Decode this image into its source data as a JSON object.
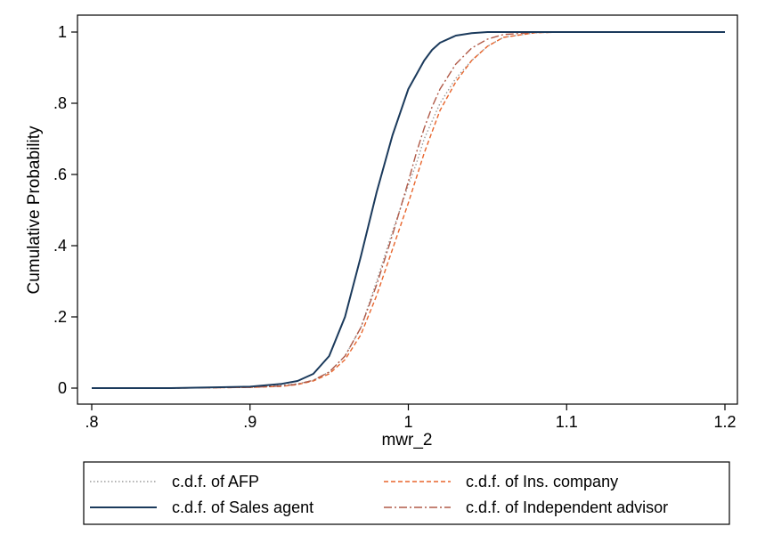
{
  "chart_data": {
    "type": "line",
    "xlabel": "mwr_2",
    "ylabel": "Cumulative Probability",
    "xlim": [
      0.8,
      1.2
    ],
    "ylim": [
      0,
      1
    ],
    "x_ticks": [
      0.8,
      0.9,
      1.0,
      1.1,
      1.2
    ],
    "x_tick_labels": [
      ".8",
      ".9",
      "1",
      "1.1",
      "1.2"
    ],
    "y_ticks": [
      0,
      0.2,
      0.4,
      0.6,
      0.8,
      1.0
    ],
    "y_tick_labels": [
      "0",
      ".2",
      ".4",
      ".6",
      ".8",
      "1"
    ],
    "grid": false,
    "legend_position": "bottom",
    "legend_prefix": "c.d.f. of",
    "x": [
      0.8,
      0.85,
      0.9,
      0.92,
      0.93,
      0.94,
      0.95,
      0.96,
      0.97,
      0.98,
      0.99,
      1.0,
      1.005,
      1.01,
      1.015,
      1.02,
      1.03,
      1.04,
      1.05,
      1.06,
      1.08,
      1.1,
      1.2
    ],
    "series": [
      {
        "name": "AFP",
        "style": "dotted",
        "color": "#9a9a9a",
        "values": [
          0,
          0,
          0.003,
          0.008,
          0.012,
          0.022,
          0.045,
          0.09,
          0.17,
          0.3,
          0.44,
          0.57,
          0.63,
          0.7,
          0.75,
          0.8,
          0.87,
          0.92,
          0.96,
          0.985,
          0.998,
          1,
          1
        ]
      },
      {
        "name": "Sales agent",
        "style": "solid",
        "color": "#1b3a5c",
        "values": [
          0,
          0,
          0.004,
          0.012,
          0.02,
          0.04,
          0.09,
          0.2,
          0.37,
          0.55,
          0.71,
          0.84,
          0.88,
          0.92,
          0.95,
          0.97,
          0.99,
          0.997,
          1,
          1,
          1,
          1,
          1
        ]
      },
      {
        "name": "Ins. company",
        "style": "dashed",
        "color": "#e8652c",
        "values": [
          0,
          0,
          0.002,
          0.005,
          0.01,
          0.02,
          0.04,
          0.08,
          0.15,
          0.26,
          0.39,
          0.52,
          0.59,
          0.66,
          0.72,
          0.78,
          0.86,
          0.92,
          0.96,
          0.985,
          0.998,
          1,
          1
        ]
      },
      {
        "name": "Independent advisor",
        "style": "dashdot",
        "color": "#b05a48",
        "values": [
          0,
          0,
          0.002,
          0.006,
          0.011,
          0.022,
          0.045,
          0.09,
          0.17,
          0.29,
          0.43,
          0.58,
          0.66,
          0.73,
          0.79,
          0.84,
          0.91,
          0.955,
          0.98,
          0.993,
          0.999,
          1,
          1
        ]
      }
    ]
  }
}
